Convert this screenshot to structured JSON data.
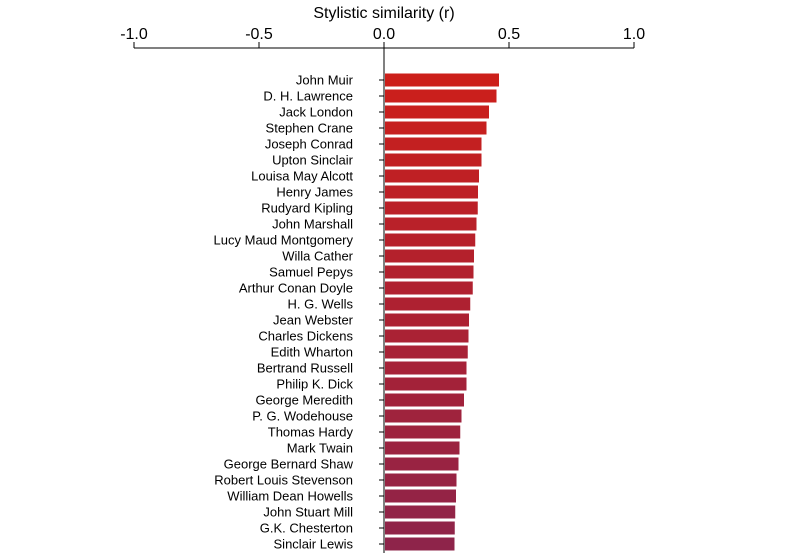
{
  "chart_data": {
    "type": "bar",
    "orientation": "horizontal",
    "xlabel": "Stylistic similarity (r)",
    "xlim": [
      -1.0,
      1.0
    ],
    "ticks": [
      -1.0,
      -0.5,
      0.0,
      0.5,
      1.0
    ],
    "tick_labels": [
      "-1.0",
      "-0.5",
      "0.0",
      "0.5",
      "1.0"
    ],
    "axis_position": "top",
    "grid": false,
    "categories": [
      "John Muir",
      "D. H. Lawrence",
      "Jack London",
      "Stephen Crane",
      "Joseph Conrad",
      "Upton Sinclair",
      "Louisa May Alcott",
      "Henry James",
      "Rudyard Kipling",
      "John Marshall",
      "Lucy Maud Montgomery",
      "Willa Cather",
      "Samuel Pepys",
      "Arthur Conan Doyle",
      "H. G. Wells",
      "Jean Webster",
      "Charles Dickens",
      "Edith Wharton",
      "Bertrand Russell",
      "Philip K. Dick",
      "George Meredith",
      "P. G. Wodehouse",
      "Thomas Hardy",
      "Mark Twain",
      "George Bernard Shaw",
      "Robert Louis Stevenson",
      "William Dean Howells",
      "John Stuart Mill",
      "G.K. Chesterton",
      "Sinclair Lewis"
    ],
    "values": [
      0.46,
      0.45,
      0.42,
      0.41,
      0.39,
      0.39,
      0.38,
      0.376,
      0.375,
      0.37,
      0.365,
      0.36,
      0.358,
      0.355,
      0.345,
      0.34,
      0.338,
      0.335,
      0.33,
      0.33,
      0.32,
      0.31,
      0.305,
      0.302,
      0.298,
      0.29,
      0.288,
      0.285,
      0.283,
      0.282
    ],
    "colors": {
      "start": "#cc1f1a",
      "end": "#8e244a",
      "axis": "#000000"
    }
  }
}
